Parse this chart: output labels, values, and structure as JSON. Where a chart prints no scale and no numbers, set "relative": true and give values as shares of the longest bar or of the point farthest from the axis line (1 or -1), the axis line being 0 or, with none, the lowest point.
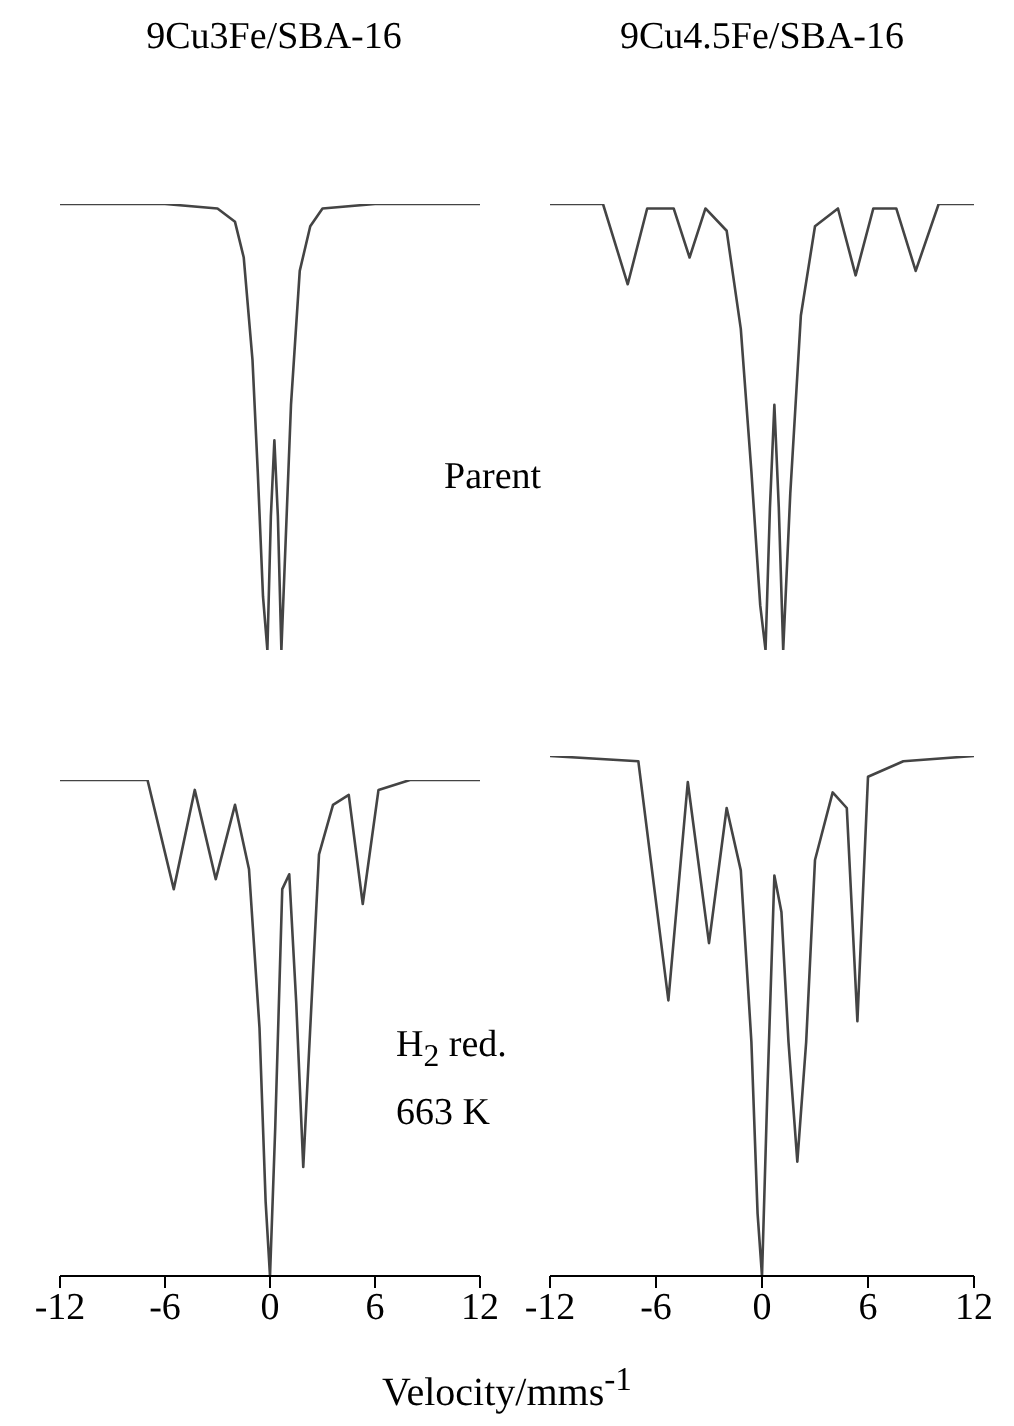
{
  "chart_data": [
    {
      "type": "line",
      "title": "9Cu3Fe/SBA-16",
      "relative": true,
      "color": "#444444",
      "marker": "none",
      "tick_labels": false,
      "xlim": [
        -12,
        12
      ],
      "xticks": [
        -12,
        -6,
        0,
        6,
        12
      ],
      "annotations": [
        "Parent"
      ],
      "x": [
        -12,
        -6,
        -3,
        -2,
        -1.5,
        -1,
        -0.7,
        -0.4,
        -0.15,
        0.05,
        0.25,
        0.45,
        0.65,
        0.9,
        1.2,
        1.7,
        2.3,
        3,
        6,
        12
      ],
      "values": [
        1,
        1,
        0.99,
        0.96,
        0.88,
        0.65,
        0.4,
        0.12,
        0,
        0.3,
        0.47,
        0.3,
        0,
        0.25,
        0.55,
        0.85,
        0.95,
        0.99,
        1,
        1
      ]
    },
    {
      "type": "line",
      "title": "9Cu4.5Fe/SBA-16",
      "relative": true,
      "color": "#444444",
      "marker": "none",
      "tick_labels": false,
      "xlim": [
        -12,
        12
      ],
      "xticks": [
        -12,
        -6,
        0,
        6,
        12
      ],
      "x": [
        -12,
        -9,
        -7.6,
        -6.5,
        -5,
        -4.1,
        -3.2,
        -2,
        -1.2,
        -0.6,
        -0.1,
        0.2,
        0.45,
        0.7,
        0.95,
        1.2,
        1.6,
        2.2,
        3,
        4.3,
        5.3,
        6.3,
        7.6,
        8.7,
        10,
        12
      ],
      "values": [
        1,
        1,
        0.82,
        0.99,
        0.99,
        0.88,
        0.99,
        0.94,
        0.72,
        0.4,
        0.1,
        0,
        0.32,
        0.55,
        0.32,
        0,
        0.35,
        0.75,
        0.95,
        0.99,
        0.84,
        0.99,
        0.99,
        0.85,
        1,
        1
      ]
    },
    {
      "type": "line",
      "relative": true,
      "color": "#444444",
      "marker": "none",
      "xlim": [
        -12,
        12
      ],
      "xticks": [
        -12,
        -6,
        0,
        6,
        12
      ],
      "xlabel": "Velocity/mms$^{-1}$",
      "annotations": [
        "H$_{2}$ red.",
        "663 K"
      ],
      "x": [
        -12,
        -7,
        -5.5,
        -4.3,
        -3.1,
        -2,
        -1.2,
        -0.6,
        -0.25,
        0,
        0.3,
        0.7,
        1.1,
        1.5,
        1.9,
        2.3,
        2.8,
        3.6,
        4.5,
        5.3,
        6.2,
        8,
        12
      ],
      "values": [
        1,
        1,
        0.78,
        0.98,
        0.8,
        0.95,
        0.82,
        0.5,
        0.15,
        0,
        0.3,
        0.78,
        0.81,
        0.55,
        0.22,
        0.5,
        0.85,
        0.95,
        0.97,
        0.75,
        0.98,
        1,
        1
      ]
    },
    {
      "type": "line",
      "relative": true,
      "color": "#444444",
      "marker": "none",
      "xlim": [
        -12,
        12
      ],
      "xticks": [
        -12,
        -6,
        0,
        6,
        12
      ],
      "x": [
        -12,
        -7,
        -5.3,
        -4.2,
        -3,
        -2,
        -1.2,
        -0.6,
        -0.25,
        0,
        0.3,
        0.7,
        1.1,
        1.5,
        2,
        2.5,
        3,
        4,
        4.8,
        5.4,
        6,
        8,
        12
      ],
      "values": [
        1,
        0.99,
        0.53,
        0.95,
        0.64,
        0.9,
        0.78,
        0.45,
        0.12,
        0,
        0.35,
        0.77,
        0.7,
        0.45,
        0.22,
        0.45,
        0.8,
        0.93,
        0.9,
        0.49,
        0.96,
        0.99,
        1
      ]
    }
  ]
}
